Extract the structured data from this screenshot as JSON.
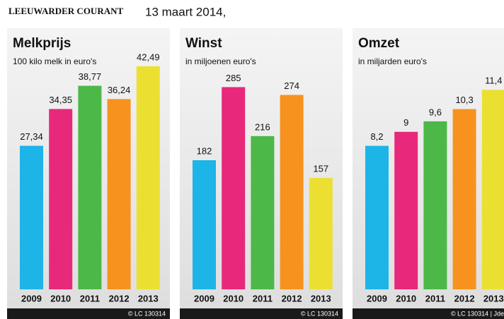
{
  "header": {
    "publication": "LEEUWARDER COURANT",
    "date": "13 maart 2014,"
  },
  "chart_data": [
    {
      "type": "bar",
      "title": "Melkprijs",
      "subtitle": "100 kilo melk in euro's",
      "categories": [
        "2009",
        "2010",
        "2011",
        "2012",
        "2013"
      ],
      "values": [
        27.34,
        34.35,
        38.77,
        36.24,
        42.49
      ],
      "value_labels": [
        "27,34",
        "34,35",
        "38,77",
        "36,24",
        "42,49"
      ],
      "colors": [
        "#1db4e8",
        "#e8287b",
        "#4cb848",
        "#f7921e",
        "#ebe031"
      ],
      "ylim": [
        0,
        50
      ],
      "source": "© LC 130314"
    },
    {
      "type": "bar",
      "title": "Winst",
      "subtitle": "in miljoenen euro's",
      "categories": [
        "2009",
        "2010",
        "2011",
        "2012",
        "2013"
      ],
      "values": [
        182,
        285,
        216,
        274,
        157
      ],
      "colors": [
        "#1db4e8",
        "#e8287b",
        "#4cb848",
        "#f7921e",
        "#ebe031"
      ],
      "ylim": [
        0,
        370
      ],
      "source": "© LC 130314"
    },
    {
      "type": "bar",
      "title": "Omzet",
      "subtitle": "in miljarden euro's",
      "categories": [
        "2009",
        "2010",
        "2011",
        "2012",
        "2013"
      ],
      "values": [
        8.2,
        9,
        9.6,
        10.3,
        11.4
      ],
      "value_labels": [
        "8,2",
        "9",
        "9,6",
        "10,3",
        "11,4"
      ],
      "colors": [
        "#1db4e8",
        "#e8287b",
        "#4cb848",
        "#f7921e",
        "#ebe031"
      ],
      "ylim": [
        0,
        15
      ],
      "source": "© LC 130314 | Jde"
    }
  ]
}
